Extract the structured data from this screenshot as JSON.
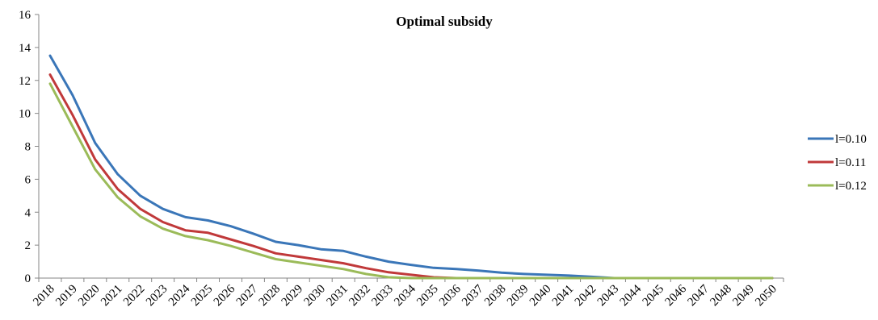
{
  "chart_data": {
    "type": "line",
    "title": "Optimal subsidy",
    "xlabel": "",
    "ylabel": "",
    "ylim": [
      0,
      16
    ],
    "yticks": [
      0,
      2,
      4,
      6,
      8,
      10,
      12,
      14,
      16
    ],
    "grid": false,
    "legend_position": "right",
    "categories": [
      "2018",
      "2019",
      "2020",
      "2021",
      "2022",
      "2023",
      "2024",
      "2025",
      "2026",
      "2027",
      "2028",
      "2029",
      "2030",
      "2031",
      "2032",
      "2033",
      "2034",
      "2035",
      "2036",
      "2037",
      "2038",
      "2039",
      "2040",
      "2041",
      "2042",
      "2043",
      "2044",
      "2045",
      "2046",
      "2047",
      "2048",
      "2049",
      "2050"
    ],
    "series": [
      {
        "name": "l=0.10",
        "color": "#3a76b8",
        "values": [
          13.5,
          11.1,
          8.2,
          6.3,
          5.0,
          4.2,
          3.7,
          3.5,
          3.15,
          2.7,
          2.2,
          2.0,
          1.75,
          1.65,
          1.3,
          1.0,
          0.8,
          0.62,
          0.55,
          0.45,
          0.33,
          0.25,
          0.2,
          0.15,
          0.08,
          0.0,
          0.0,
          0.0,
          0.0,
          0.0,
          0.0,
          0.0,
          0.0
        ]
      },
      {
        "name": "l=0.11",
        "color": "#c0393a",
        "values": [
          12.35,
          9.9,
          7.2,
          5.4,
          4.2,
          3.4,
          2.9,
          2.75,
          2.35,
          1.95,
          1.5,
          1.3,
          1.1,
          0.9,
          0.6,
          0.35,
          0.2,
          0.05,
          0.0,
          0.0,
          0.0,
          0.0,
          0.0,
          0.0,
          0.0,
          0.0,
          0.0,
          0.0,
          0.0,
          0.0,
          0.0,
          0.0,
          0.0
        ]
      },
      {
        "name": "l=0.12",
        "color": "#9bbb59",
        "values": [
          11.8,
          9.2,
          6.6,
          4.9,
          3.75,
          3.0,
          2.55,
          2.3,
          1.95,
          1.55,
          1.15,
          0.95,
          0.75,
          0.55,
          0.25,
          0.05,
          0.0,
          0.0,
          0.0,
          0.0,
          0.0,
          0.0,
          0.0,
          0.0,
          0.0,
          0.0,
          0.0,
          0.0,
          0.0,
          0.0,
          0.0,
          0.0,
          0.0
        ]
      }
    ]
  }
}
